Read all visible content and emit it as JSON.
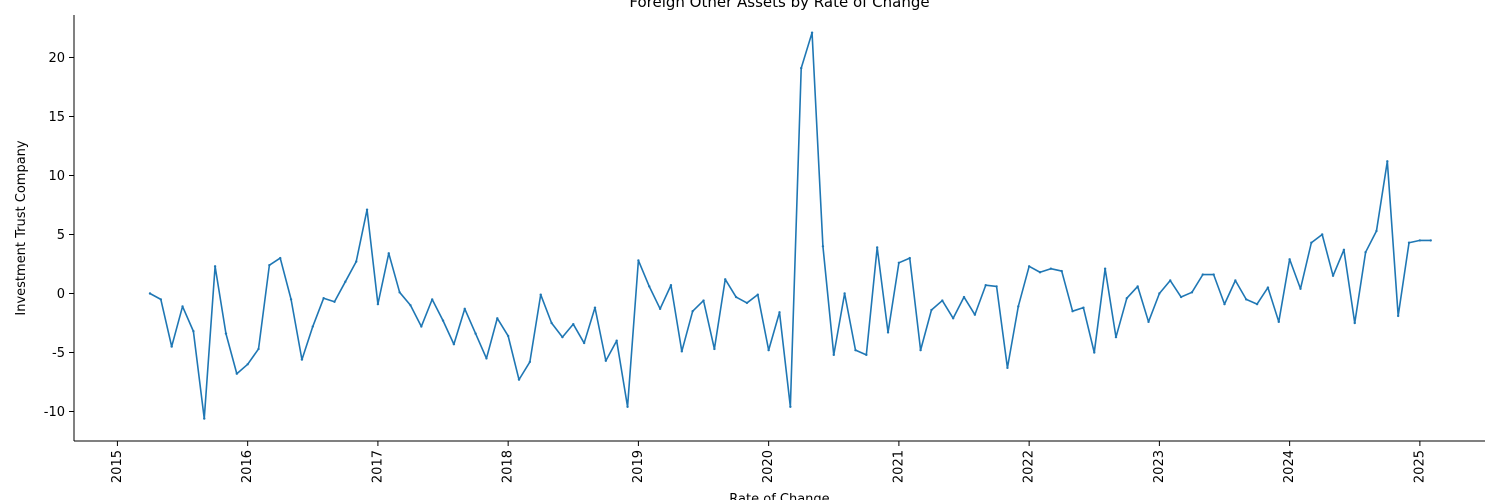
{
  "chart_data": {
    "type": "line",
    "title": "Foreign Other Assets by Rate of Change",
    "xlabel": "Rate of Change",
    "ylabel": "Investment Trust Company",
    "x_ticks": [
      "2015",
      "2016",
      "2017",
      "2018",
      "2019",
      "2020",
      "2021",
      "2022",
      "2023",
      "2024",
      "2025"
    ],
    "y_ticks": [
      -10,
      -5,
      0,
      5,
      10,
      15,
      20
    ],
    "xlim": [
      "2014-09",
      "2025-07"
    ],
    "ylim": [
      -12.5,
      23.6
    ],
    "grid": false,
    "series": [
      {
        "color": "#1f77b4",
        "points": [
          {
            "x": "2015-04",
            "y": 0.0
          },
          {
            "x": "2015-05",
            "y": -0.5
          },
          {
            "x": "2015-06",
            "y": -4.5
          },
          {
            "x": "2015-07",
            "y": -1.1
          },
          {
            "x": "2015-08",
            "y": -3.2
          },
          {
            "x": "2015-09",
            "y": -10.6
          },
          {
            "x": "2015-10",
            "y": 2.3
          },
          {
            "x": "2015-11",
            "y": -3.4
          },
          {
            "x": "2015-12",
            "y": -6.8
          },
          {
            "x": "2016-01",
            "y": -6.0
          },
          {
            "x": "2016-02",
            "y": -4.7
          },
          {
            "x": "2016-03",
            "y": 2.4
          },
          {
            "x": "2016-04",
            "y": 3.0
          },
          {
            "x": "2016-05",
            "y": -0.5
          },
          {
            "x": "2016-06",
            "y": -5.6
          },
          {
            "x": "2016-07",
            "y": -2.8
          },
          {
            "x": "2016-08",
            "y": -0.4
          },
          {
            "x": "2016-09",
            "y": -0.7
          },
          {
            "x": "2016-10",
            "y": 1.0
          },
          {
            "x": "2016-11",
            "y": 2.7
          },
          {
            "x": "2016-12",
            "y": 7.1
          },
          {
            "x": "2017-01",
            "y": -0.9
          },
          {
            "x": "2017-02",
            "y": 3.4
          },
          {
            "x": "2017-03",
            "y": 0.1
          },
          {
            "x": "2017-04",
            "y": -1.0
          },
          {
            "x": "2017-05",
            "y": -2.8
          },
          {
            "x": "2017-06",
            "y": -0.5
          },
          {
            "x": "2017-07",
            "y": -2.3
          },
          {
            "x": "2017-08",
            "y": -4.3
          },
          {
            "x": "2017-09",
            "y": -1.3
          },
          {
            "x": "2017-10",
            "y": -3.4
          },
          {
            "x": "2017-11",
            "y": -5.5
          },
          {
            "x": "2017-12",
            "y": -2.1
          },
          {
            "x": "2018-01",
            "y": -3.6
          },
          {
            "x": "2018-02",
            "y": -7.3
          },
          {
            "x": "2018-03",
            "y": -5.8
          },
          {
            "x": "2018-04",
            "y": -0.1
          },
          {
            "x": "2018-05",
            "y": -2.5
          },
          {
            "x": "2018-06",
            "y": -3.7
          },
          {
            "x": "2018-07",
            "y": -2.6
          },
          {
            "x": "2018-08",
            "y": -4.2
          },
          {
            "x": "2018-09",
            "y": -1.2
          },
          {
            "x": "2018-10",
            "y": -5.7
          },
          {
            "x": "2018-11",
            "y": -4.0
          },
          {
            "x": "2018-12",
            "y": -9.6
          },
          {
            "x": "2019-01",
            "y": 2.8
          },
          {
            "x": "2019-02",
            "y": 0.6
          },
          {
            "x": "2019-03",
            "y": -1.3
          },
          {
            "x": "2019-04",
            "y": 0.7
          },
          {
            "x": "2019-05",
            "y": -4.9
          },
          {
            "x": "2019-06",
            "y": -1.5
          },
          {
            "x": "2019-07",
            "y": -0.6
          },
          {
            "x": "2019-08",
            "y": -4.7
          },
          {
            "x": "2019-09",
            "y": 1.2
          },
          {
            "x": "2019-10",
            "y": -0.3
          },
          {
            "x": "2019-11",
            "y": -0.8
          },
          {
            "x": "2019-12",
            "y": -0.1
          },
          {
            "x": "2020-01",
            "y": -4.8
          },
          {
            "x": "2020-02",
            "y": -1.6
          },
          {
            "x": "2020-03",
            "y": -9.6
          },
          {
            "x": "2020-04",
            "y": 19.1
          },
          {
            "x": "2020-05",
            "y": 22.1
          },
          {
            "x": "2020-06",
            "y": 4.0
          },
          {
            "x": "2020-07",
            "y": -5.2
          },
          {
            "x": "2020-08",
            "y": 0.0
          },
          {
            "x": "2020-09",
            "y": -4.8
          },
          {
            "x": "2020-10",
            "y": -5.2
          },
          {
            "x": "2020-11",
            "y": 3.9
          },
          {
            "x": "2020-12",
            "y": -3.3
          },
          {
            "x": "2021-01",
            "y": 2.6
          },
          {
            "x": "2021-02",
            "y": 3.0
          },
          {
            "x": "2021-03",
            "y": -4.8
          },
          {
            "x": "2021-04",
            "y": -1.4
          },
          {
            "x": "2021-05",
            "y": -0.6
          },
          {
            "x": "2021-06",
            "y": -2.1
          },
          {
            "x": "2021-07",
            "y": -0.3
          },
          {
            "x": "2021-08",
            "y": -1.8
          },
          {
            "x": "2021-09",
            "y": 0.7
          },
          {
            "x": "2021-10",
            "y": 0.6
          },
          {
            "x": "2021-11",
            "y": -6.3
          },
          {
            "x": "2021-12",
            "y": -1.1
          },
          {
            "x": "2022-01",
            "y": 2.3
          },
          {
            "x": "2022-02",
            "y": 1.8
          },
          {
            "x": "2022-03",
            "y": 2.1
          },
          {
            "x": "2022-04",
            "y": 1.9
          },
          {
            "x": "2022-05",
            "y": -1.5
          },
          {
            "x": "2022-06",
            "y": -1.2
          },
          {
            "x": "2022-07",
            "y": -5.0
          },
          {
            "x": "2022-08",
            "y": 2.1
          },
          {
            "x": "2022-09",
            "y": -3.7
          },
          {
            "x": "2022-10",
            "y": -0.4
          },
          {
            "x": "2022-11",
            "y": 0.6
          },
          {
            "x": "2022-12",
            "y": -2.4
          },
          {
            "x": "2023-01",
            "y": 0.0
          },
          {
            "x": "2023-02",
            "y": 1.1
          },
          {
            "x": "2023-03",
            "y": -0.3
          },
          {
            "x": "2023-04",
            "y": 0.1
          },
          {
            "x": "2023-05",
            "y": 1.6
          },
          {
            "x": "2023-06",
            "y": 1.6
          },
          {
            "x": "2023-07",
            "y": -0.9
          },
          {
            "x": "2023-08",
            "y": 1.1
          },
          {
            "x": "2023-09",
            "y": -0.5
          },
          {
            "x": "2023-10",
            "y": -0.9
          },
          {
            "x": "2023-11",
            "y": 0.5
          },
          {
            "x": "2023-12",
            "y": -2.4
          },
          {
            "x": "2024-01",
            "y": 2.9
          },
          {
            "x": "2024-02",
            "y": 0.4
          },
          {
            "x": "2024-03",
            "y": 4.3
          },
          {
            "x": "2024-04",
            "y": 5.0
          },
          {
            "x": "2024-05",
            "y": 1.5
          },
          {
            "x": "2024-06",
            "y": 3.7
          },
          {
            "x": "2024-07",
            "y": -2.5
          },
          {
            "x": "2024-08",
            "y": 3.5
          },
          {
            "x": "2024-09",
            "y": 5.3
          },
          {
            "x": "2024-10",
            "y": 11.2
          },
          {
            "x": "2024-11",
            "y": -1.9
          },
          {
            "x": "2024-12",
            "y": 4.3
          },
          {
            "x": "2025-01",
            "y": 4.5
          },
          {
            "x": "2025-02",
            "y": 4.5
          }
        ]
      }
    ]
  }
}
